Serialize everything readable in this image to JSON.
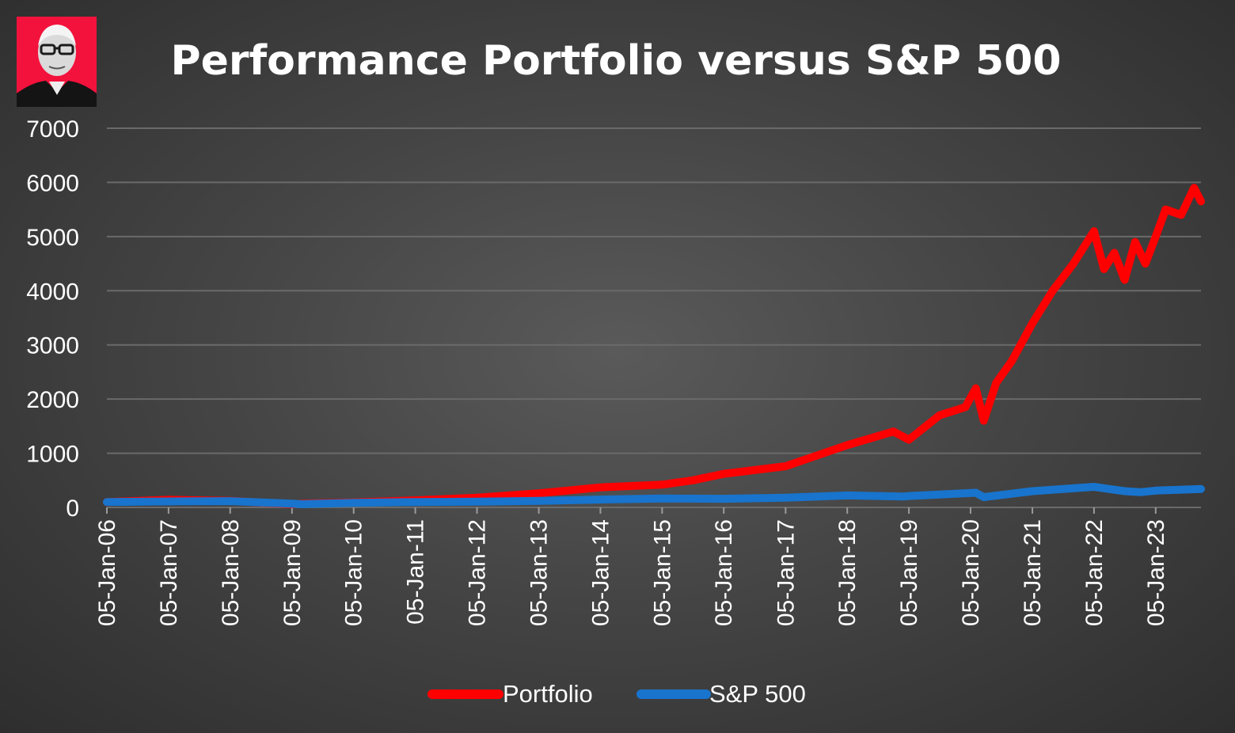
{
  "chart_data": {
    "type": "line",
    "title": "Performance Portfolio versus S&P 500",
    "xlabel": "",
    "ylabel": "",
    "ylim": [
      0,
      7000
    ],
    "yticks": [
      "0",
      "1000",
      "2000",
      "3000",
      "4000",
      "5000",
      "6000",
      "7000"
    ],
    "xrange": [
      "05-Jan-06",
      "30-Sep-23"
    ],
    "xticks": [
      "05-Jan-06",
      "05-Jan-07",
      "05-Jan-08",
      "05-Jan-09",
      "05-Jan-10",
      "05-Jan-11",
      "05-Jan-12",
      "05-Jan-13",
      "05-Jan-14",
      "05-Jan-15",
      "05-Jan-16",
      "05-Jan-17",
      "05-Jan-18",
      "05-Jan-19",
      "05-Jan-20",
      "05-Jan-21",
      "05-Jan-22",
      "05-Jan-23"
    ],
    "grid": true,
    "legend_position": "bottom",
    "series": [
      {
        "name": "Portfolio",
        "color": "#ff0000",
        "x": [
          "05-Jan-06",
          "05-Jan-07",
          "05-Jan-08",
          "01-Sep-08",
          "05-Jan-09",
          "05-Mar-09",
          "05-Jan-10",
          "05-Jan-11",
          "05-Jan-12",
          "05-Jan-13",
          "05-Jan-14",
          "05-Jan-15",
          "05-Jul-15",
          "05-Jan-16",
          "05-Jan-17",
          "05-Jan-18",
          "05-Oct-18",
          "05-Jan-19",
          "05-Jul-19",
          "05-Dec-19",
          "05-Feb-20",
          "23-Mar-20",
          "05-Jun-20",
          "05-Sep-20",
          "05-Jan-21",
          "05-May-21",
          "05-Sep-21",
          "05-Nov-21",
          "05-Jan-22",
          "05-Mar-22",
          "05-May-22",
          "05-Jul-22",
          "05-Sep-22",
          "05-Nov-22",
          "05-Jan-23",
          "05-Mar-23",
          "05-Jun-23",
          "20-Aug-23",
          "30-Sep-23"
        ],
        "y": [
          100,
          140,
          120,
          80,
          60,
          70,
          90,
          130,
          180,
          260,
          370,
          420,
          500,
          620,
          760,
          1150,
          1400,
          1250,
          1700,
          1850,
          2200,
          1600,
          2300,
          2700,
          3400,
          4000,
          4500,
          4800,
          5100,
          4400,
          4700,
          4200,
          4900,
          4500,
          5000,
          5500,
          5400,
          5900,
          5650
        ]
      },
      {
        "name": "S&P 500",
        "color": "#1874cd",
        "x": [
          "05-Jan-06",
          "05-Jan-07",
          "05-Jan-08",
          "05-Jan-09",
          "05-Mar-09",
          "05-Jan-10",
          "05-Jan-11",
          "05-Jan-12",
          "05-Jan-13",
          "05-Jan-14",
          "05-Jan-15",
          "05-Jan-16",
          "05-Jan-17",
          "05-Jan-18",
          "05-Dec-18",
          "05-Jan-19",
          "05-Feb-20",
          "23-Mar-20",
          "05-Jan-21",
          "05-Jan-22",
          "05-Jul-22",
          "05-Oct-22",
          "05-Jan-23",
          "30-Sep-23"
        ],
        "y": [
          100,
          110,
          115,
          70,
          60,
          85,
          100,
          105,
          120,
          145,
          165,
          160,
          180,
          220,
          200,
          210,
          270,
          190,
          300,
          380,
          300,
          280,
          310,
          340
        ]
      }
    ]
  }
}
